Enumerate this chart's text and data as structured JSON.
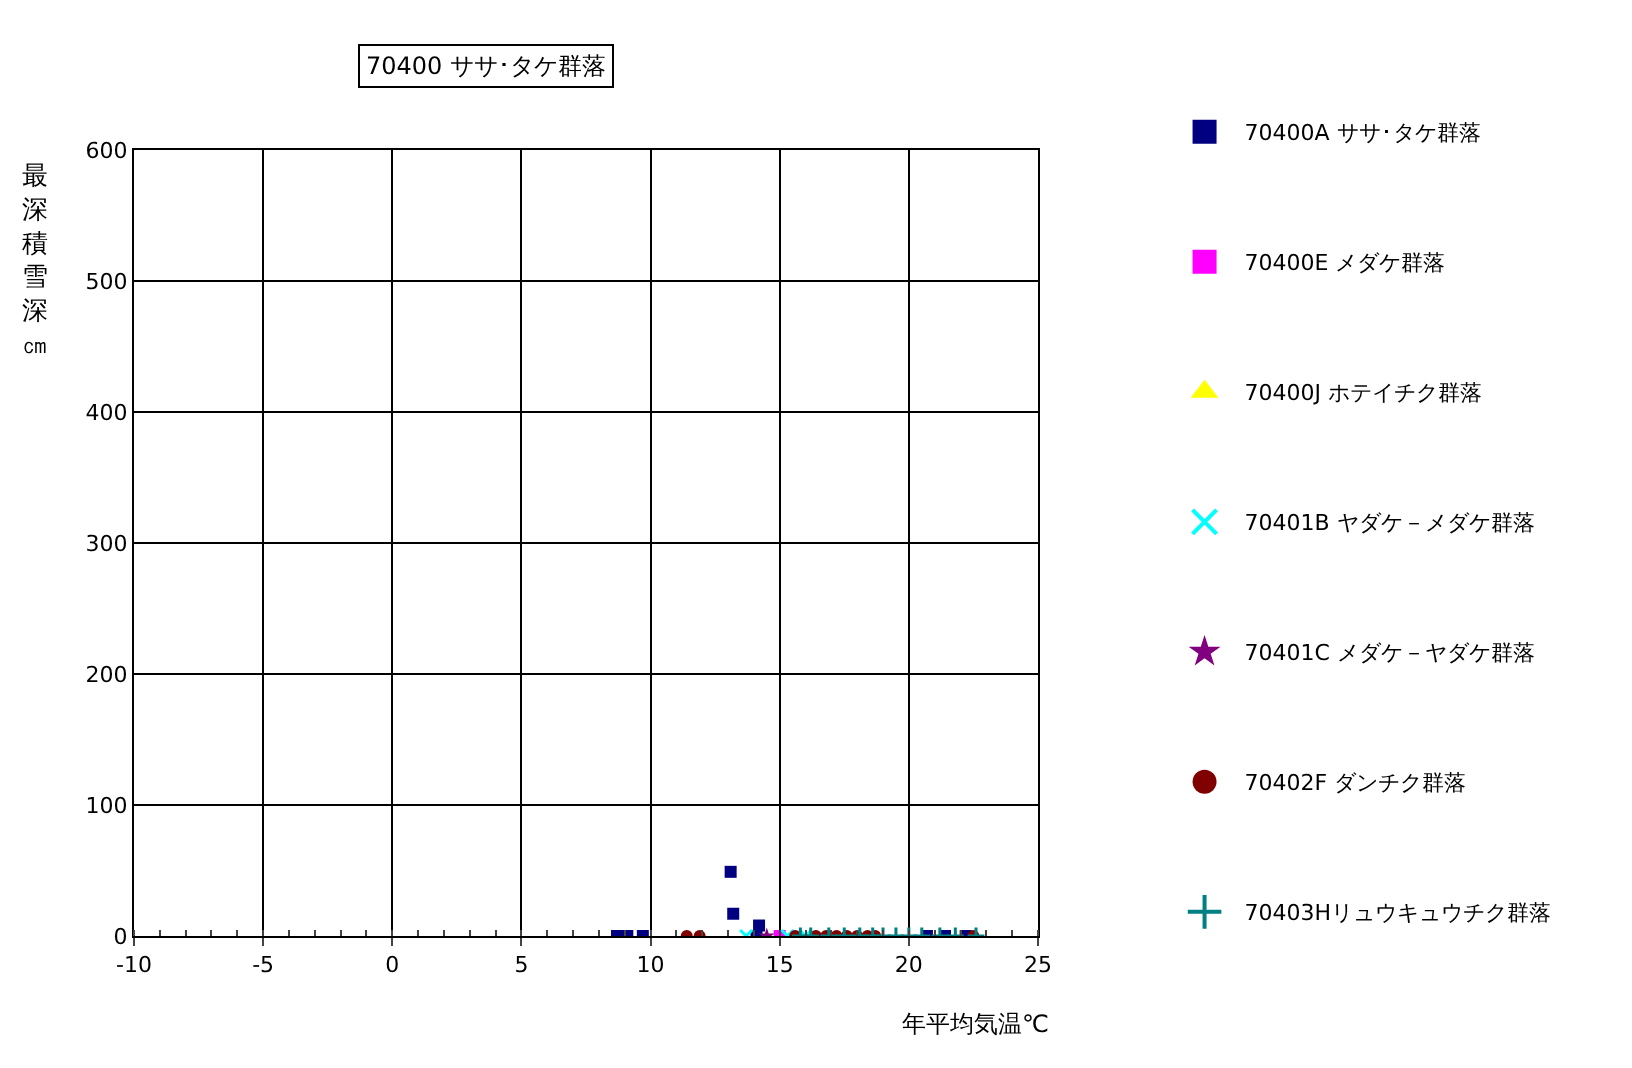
{
  "chart_data": {
    "type": "scatter",
    "title": "70400 ササ･タケ群落",
    "xlabel": "年平均気温℃",
    "ylabel": "最深積雪深㎝",
    "xlim": [
      -10,
      25
    ],
    "xticks": [
      -10,
      -5,
      0,
      5,
      10,
      15,
      20,
      25
    ],
    "ylim": [
      0,
      600
    ],
    "yticks": [
      0,
      100,
      200,
      300,
      400,
      500,
      600
    ],
    "grid": true,
    "legend": "right",
    "series": [
      {
        "name": "70400A ササ･タケ群落",
        "color": "#000080",
        "marker": "square",
        "x": [
          8.7,
          9.1,
          9.7,
          13.1,
          13.2,
          14.2,
          14.1,
          20.7,
          21.4,
          22.2
        ],
        "values": [
          0,
          0,
          0,
          49,
          17,
          8,
          0,
          0,
          0,
          0
        ]
      },
      {
        "name": "70400E メダケ群落",
        "color": "#ff00ff",
        "marker": "square",
        "x": [
          15.0
        ],
        "values": [
          0
        ]
      },
      {
        "name": "70400J ホテイチク群落",
        "color": "#ffff00",
        "marker": "triangle"
      },
      {
        "name": "70401B ヤダケ－メダケ群落",
        "color": "#00ffff",
        "marker": "cross",
        "x": [
          13.7,
          15.3,
          16.0
        ],
        "values": [
          0,
          0,
          0
        ]
      },
      {
        "name": "70401C メダケ－ヤダケ群落",
        "color": "#800080",
        "marker": "star",
        "x": [
          14.5
        ],
        "values": [
          0
        ]
      },
      {
        "name": "70402F ダンチク群落",
        "color": "#800000",
        "marker": "circle",
        "x": [
          11.4,
          11.9,
          15.6,
          16.4,
          16.8,
          17.2,
          17.6,
          18.0,
          18.4,
          18.7,
          22.5
        ],
        "values": [
          0,
          0,
          0,
          0,
          0,
          0,
          0,
          0,
          0,
          0,
          0
        ]
      },
      {
        "name": "70403Hリュウキュウチク群落",
        "color": "#008080",
        "marker": "plus",
        "x": [
          15.8,
          16.2,
          16.9,
          17.5,
          18.1,
          18.6,
          19.0,
          19.5,
          20.0,
          20.5,
          21.2,
          21.8,
          22.6
        ],
        "values": [
          0,
          0,
          0,
          0,
          0,
          0,
          0,
          0,
          0,
          0,
          0,
          0,
          0
        ]
      }
    ]
  }
}
